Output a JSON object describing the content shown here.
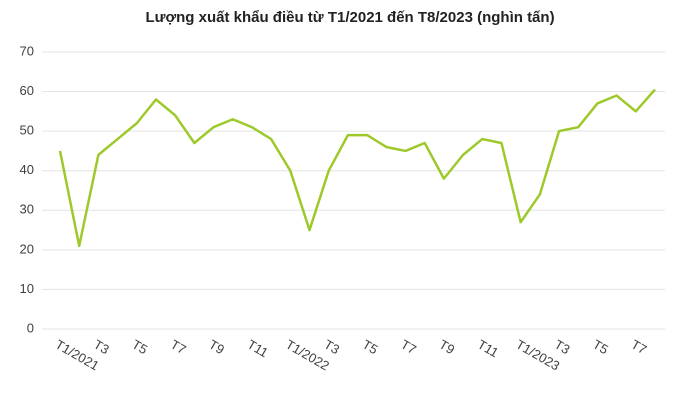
{
  "chart_data": {
    "type": "line",
    "title": "Lượng xuất khẩu điều từ T1/2021 đến T8/2023 (nghìn tấn)",
    "categories": [
      "T1/2021",
      null,
      "T3",
      null,
      "T5",
      null,
      "T7",
      null,
      "T9",
      null,
      "T11",
      null,
      "T1/2022",
      null,
      "T3",
      null,
      "T5",
      null,
      "T7",
      null,
      "T9",
      null,
      "T11",
      null,
      "T1/2023",
      null,
      "T3",
      null,
      "T5",
      null,
      "T7",
      null
    ],
    "series": [
      {
        "name": "Lượng xuất khẩu",
        "color": "#9dc92a",
        "values": [
          45,
          21,
          44,
          48,
          52,
          58,
          54,
          47,
          51,
          53,
          51,
          48,
          40,
          25,
          40,
          49,
          49,
          46,
          45,
          47,
          38,
          44,
          48,
          47,
          27,
          34,
          50,
          51,
          57,
          59,
          55,
          60.5
        ]
      }
    ],
    "ylim": [
      0,
      70
    ],
    "yticks": [
      0,
      10,
      20,
      30,
      40,
      50,
      60,
      70
    ],
    "grid": true
  }
}
